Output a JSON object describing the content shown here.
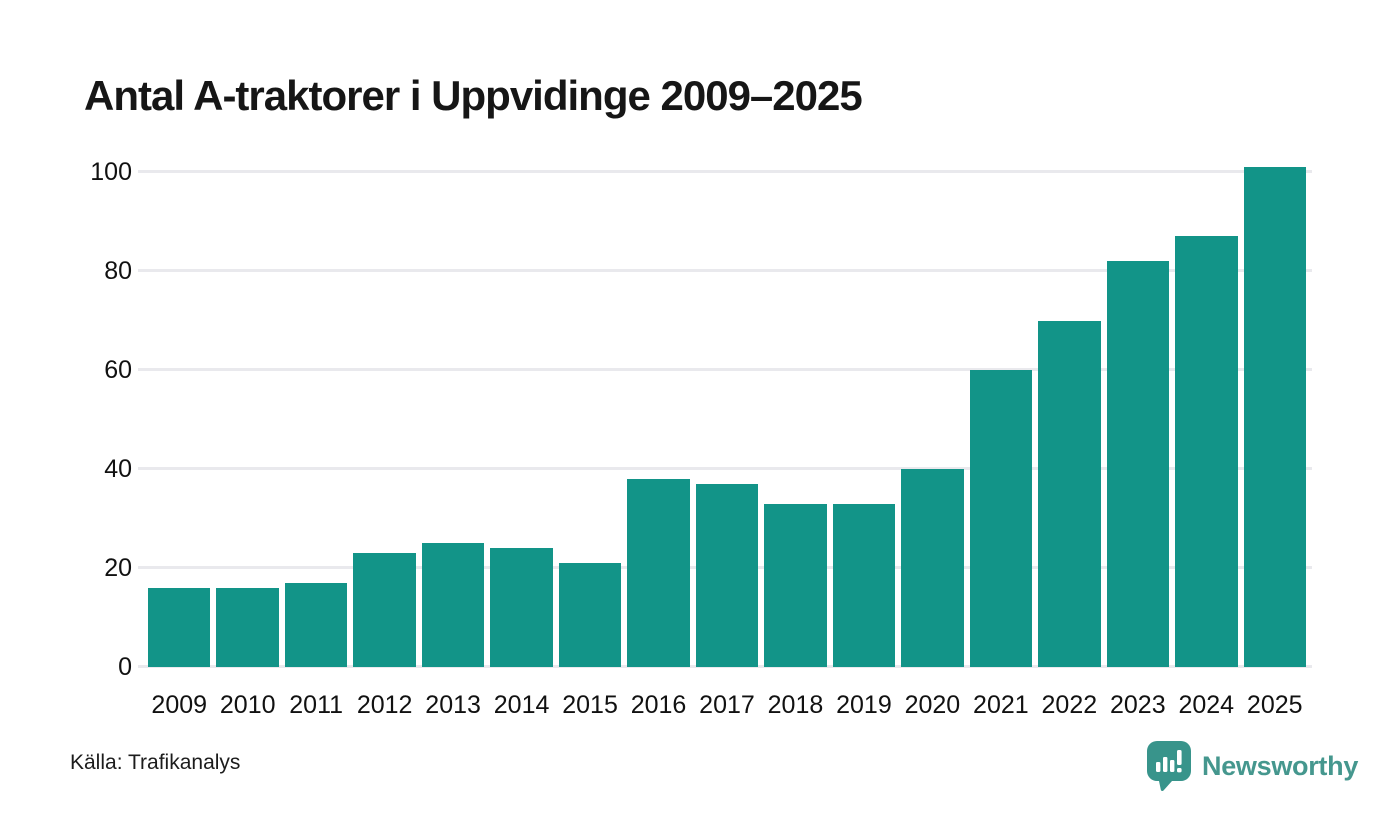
{
  "title": "Antal A-traktorer i Uppvidinge 2009–2025",
  "source_note": "Källa: Trafikanalys",
  "branding": {
    "name": "Newsworthy",
    "icon": "newsworthy-bubble-bar-chart-icon",
    "text_color": "#45978e",
    "icon_color": "#38948b"
  },
  "colors": {
    "bar": "#129488",
    "gridline": "#e9e9ed",
    "text": "#111111",
    "background": "#ffffff"
  },
  "chart_data": {
    "type": "bar",
    "title": "Antal A-traktorer i Uppvidinge 2009–2025",
    "categories": [
      "2009",
      "2010",
      "2011",
      "2012",
      "2013",
      "2014",
      "2015",
      "2016",
      "2017",
      "2018",
      "2019",
      "2020",
      "2021",
      "2022",
      "2023",
      "2024",
      "2025"
    ],
    "values": [
      16,
      16,
      17,
      23,
      25,
      24,
      21,
      38,
      37,
      33,
      33,
      40,
      60,
      70,
      82,
      87,
      101
    ],
    "xlabel": "",
    "ylabel": "",
    "ylim": [
      0,
      100
    ],
    "yticks": [
      0,
      20,
      40,
      60,
      80,
      100
    ],
    "grid": "horizontal",
    "legend": "none",
    "bar_color": "#129488"
  }
}
